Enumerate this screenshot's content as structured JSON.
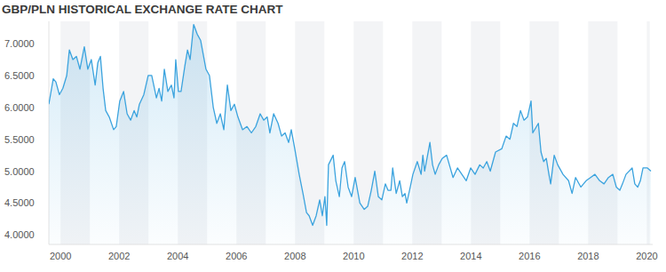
{
  "chart_data": {
    "type": "line",
    "title": "GBP/PLN HISTORICAL EXCHANGE RATE CHART",
    "color": "#3ba3de",
    "grid": false,
    "xlim": [
      1999.6,
      2020.2
    ],
    "xticks": [
      2000,
      2002,
      2004,
      2006,
      2008,
      2010,
      2012,
      2014,
      2016,
      2018,
      2020
    ],
    "ylim": [
      3.85,
      7.35
    ],
    "yticks": [
      {
        "value": 4.0,
        "label": "4.0000"
      },
      {
        "value": 4.5,
        "label": "4.5000"
      },
      {
        "value": 5.0,
        "label": "5.0000"
      },
      {
        "value": 5.5,
        "label": "5.5000"
      },
      {
        "value": 6.0,
        "label": "6.0000"
      },
      {
        "value": 6.5,
        "label": "6.5000"
      },
      {
        "value": 7.0,
        "label": "7.0000"
      }
    ],
    "x": [
      1999.6,
      1999.75,
      1999.84,
      1999.96,
      2000.08,
      2000.21,
      2000.3,
      2000.42,
      2000.54,
      2000.66,
      2000.81,
      2000.93,
      2001.05,
      2001.18,
      2001.27,
      2001.36,
      2001.45,
      2001.54,
      2001.66,
      2001.81,
      2001.9,
      2002.02,
      2002.15,
      2002.27,
      2002.39,
      2002.51,
      2002.6,
      2002.69,
      2002.84,
      2002.99,
      2003.11,
      2003.27,
      2003.36,
      2003.45,
      2003.54,
      2003.66,
      2003.78,
      2003.87,
      2003.93,
      2004.02,
      2004.11,
      2004.24,
      2004.33,
      2004.42,
      2004.54,
      2004.66,
      2004.78,
      2004.96,
      2005.08,
      2005.21,
      2005.33,
      2005.45,
      2005.57,
      2005.69,
      2005.81,
      2005.93,
      2006.05,
      2006.21,
      2006.36,
      2006.51,
      2006.66,
      2006.81,
      2006.93,
      2007.05,
      2007.14,
      2007.27,
      2007.42,
      2007.54,
      2007.66,
      2007.78,
      2007.87,
      2007.99,
      2008.14,
      2008.27,
      2008.39,
      2008.48,
      2008.6,
      2008.72,
      2008.84,
      2008.93,
      2009.02,
      2009.08,
      2009.14,
      2009.3,
      2009.39,
      2009.51,
      2009.6,
      2009.69,
      2009.81,
      2009.93,
      2010.05,
      2010.21,
      2010.36,
      2010.48,
      2010.6,
      2010.72,
      2010.84,
      2010.96,
      2011.08,
      2011.17,
      2011.27,
      2011.33,
      2011.45,
      2011.57,
      2011.66,
      2011.75,
      2011.81,
      2011.93,
      2012.02,
      2012.17,
      2012.3,
      2012.36,
      2012.42,
      2012.6,
      2012.69,
      2012.78,
      2012.9,
      2013.02,
      2013.17,
      2013.39,
      2013.54,
      2013.69,
      2013.84,
      2013.99,
      2014.14,
      2014.3,
      2014.42,
      2014.54,
      2014.66,
      2014.84,
      2015.05,
      2015.2,
      2015.33,
      2015.45,
      2015.57,
      2015.69,
      2015.81,
      2015.93,
      2016.05,
      2016.11,
      2016.3,
      2016.39,
      2016.48,
      2016.57,
      2016.66,
      2016.72,
      2016.84,
      2016.96,
      2017.14,
      2017.33,
      2017.45,
      2017.57,
      2017.75,
      2017.93,
      2018.08,
      2018.23,
      2018.39,
      2018.54,
      2018.69,
      2018.84,
      2018.96,
      2019.08,
      2019.17,
      2019.29,
      2019.5,
      2019.59,
      2019.69,
      2019.78,
      2019.87,
      2020.02,
      2020.14
    ],
    "values": [
      6.05,
      6.45,
      6.4,
      6.2,
      6.3,
      6.5,
      6.9,
      6.75,
      6.8,
      6.6,
      6.95,
      6.6,
      6.75,
      6.35,
      6.7,
      6.8,
      6.3,
      5.95,
      5.85,
      5.65,
      5.7,
      6.1,
      6.25,
      5.9,
      5.8,
      5.95,
      5.85,
      6.05,
      6.2,
      6.5,
      6.5,
      6.15,
      6.3,
      6.1,
      6.6,
      6.25,
      6.35,
      6.15,
      6.75,
      6.25,
      6.25,
      6.65,
      6.9,
      6.75,
      7.3,
      7.15,
      7.05,
      6.6,
      6.5,
      6.0,
      5.75,
      5.9,
      5.65,
      6.35,
      5.95,
      6.05,
      5.85,
      5.65,
      5.7,
      5.6,
      5.7,
      5.9,
      5.8,
      5.85,
      5.6,
      5.9,
      5.75,
      5.55,
      5.6,
      5.45,
      5.65,
      5.35,
      4.95,
      4.65,
      4.35,
      4.3,
      4.15,
      4.3,
      4.55,
      4.3,
      4.6,
      4.15,
      5.1,
      5.25,
      4.85,
      4.6,
      5.05,
      5.15,
      4.75,
      4.6,
      4.9,
      4.5,
      4.4,
      4.45,
      4.7,
      5.0,
      4.6,
      4.55,
      4.8,
      4.7,
      4.7,
      5.05,
      4.65,
      4.85,
      4.6,
      4.65,
      4.5,
      4.75,
      4.95,
      5.15,
      4.95,
      5.25,
      5.0,
      5.45,
      5.1,
      4.95,
      5.1,
      5.2,
      5.25,
      4.9,
      5.05,
      4.95,
      4.85,
      5.05,
      4.95,
      5.1,
      5.05,
      5.15,
      5.0,
      5.3,
      5.35,
      5.55,
      5.5,
      5.75,
      5.7,
      5.95,
      5.8,
      5.85,
      6.1,
      5.6,
      5.75,
      5.3,
      5.15,
      5.2,
      4.95,
      4.8,
      5.25,
      5.1,
      4.95,
      4.85,
      4.65,
      4.9,
      4.75,
      4.85,
      4.9,
      4.95,
      4.85,
      4.8,
      4.9,
      4.95,
      4.75,
      4.7,
      4.8,
      4.95,
      5.05,
      4.8,
      4.75,
      4.85,
      5.05,
      5.05,
      5.0
    ]
  }
}
